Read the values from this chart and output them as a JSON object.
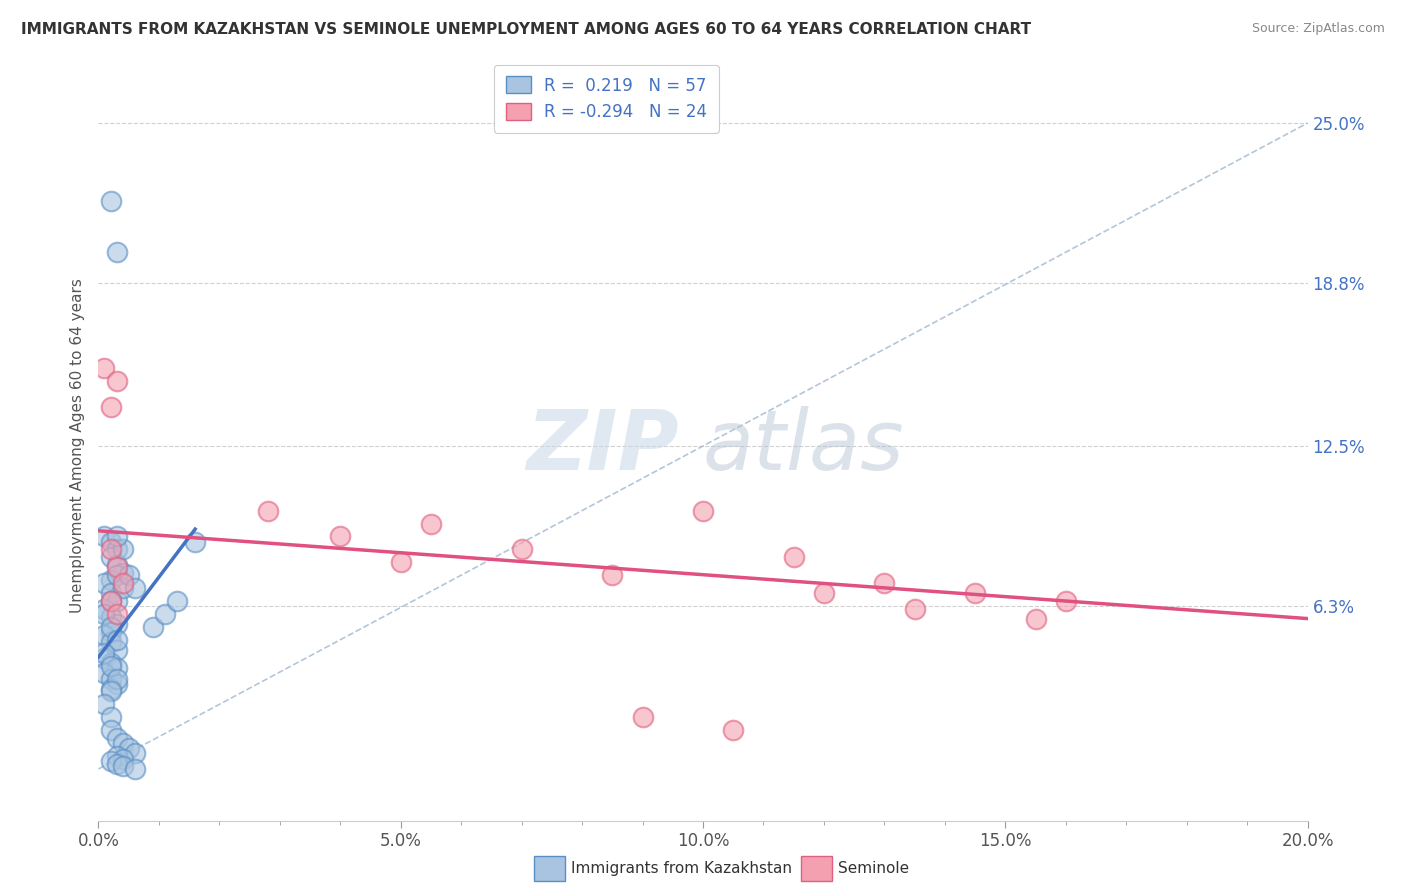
{
  "title": "IMMIGRANTS FROM KAZAKHSTAN VS SEMINOLE UNEMPLOYMENT AMONG AGES 60 TO 64 YEARS CORRELATION CHART",
  "source": "Source: ZipAtlas.com",
  "ylabel": "Unemployment Among Ages 60 to 64 years",
  "xlim": [
    0.0,
    0.2
  ],
  "ylim": [
    -0.02,
    0.27
  ],
  "xtick_labels": [
    "0.0%",
    "",
    "",
    "",
    "",
    "5.0%",
    "",
    "",
    "",
    "",
    "10.0%",
    "",
    "",
    "",
    "",
    "15.0%",
    "",
    "",
    "",
    "",
    "20.0%"
  ],
  "xtick_values": [
    0.0,
    0.01,
    0.02,
    0.03,
    0.04,
    0.05,
    0.06,
    0.07,
    0.08,
    0.09,
    0.1,
    0.11,
    0.12,
    0.13,
    0.14,
    0.15,
    0.16,
    0.17,
    0.18,
    0.19,
    0.2
  ],
  "xtick_major_labels": [
    "0.0%",
    "5.0%",
    "10.0%",
    "15.0%",
    "20.0%"
  ],
  "xtick_major_values": [
    0.0,
    0.05,
    0.1,
    0.15,
    0.2
  ],
  "ytick_labels_right": [
    "6.3%",
    "12.5%",
    "18.8%",
    "25.0%"
  ],
  "ytick_values_right": [
    0.063,
    0.125,
    0.188,
    0.25
  ],
  "legend_label1": "Immigrants from Kazakhstan",
  "legend_label2": "Seminole",
  "r1": 0.219,
  "n1": 57,
  "r2": -0.294,
  "n2": 24,
  "color_blue": "#a8c4e0",
  "color_pink": "#f4a0b0",
  "color_blue_dark": "#5a8fc4",
  "color_pink_dark": "#e06080",
  "color_blue_line": "#4472c4",
  "color_pink_line": "#e05080",
  "color_diag": "#a0b8d0",
  "watermark_zip": "ZIP",
  "watermark_atlas": "atlas",
  "blue_scatter_x": [
    0.002,
    0.003,
    0.001,
    0.002,
    0.003,
    0.002,
    0.003,
    0.004,
    0.002,
    0.001,
    0.002,
    0.003,
    0.001,
    0.002,
    0.003,
    0.002,
    0.001,
    0.002,
    0.003,
    0.001,
    0.002,
    0.003,
    0.001,
    0.002,
    0.003,
    0.002,
    0.003,
    0.004,
    0.002,
    0.001,
    0.002,
    0.003,
    0.001,
    0.002,
    0.003,
    0.002,
    0.001,
    0.002,
    0.004,
    0.003,
    0.005,
    0.006,
    0.002,
    0.003,
    0.004,
    0.005,
    0.006,
    0.003,
    0.004,
    0.002,
    0.003,
    0.004,
    0.006,
    0.009,
    0.011,
    0.013,
    0.016
  ],
  "blue_scatter_y": [
    0.22,
    0.2,
    0.09,
    0.088,
    0.085,
    0.082,
    0.079,
    0.076,
    0.073,
    0.072,
    0.068,
    0.065,
    0.062,
    0.059,
    0.056,
    0.053,
    0.052,
    0.049,
    0.046,
    0.043,
    0.041,
    0.039,
    0.037,
    0.035,
    0.033,
    0.031,
    0.075,
    0.07,
    0.065,
    0.06,
    0.055,
    0.05,
    0.045,
    0.04,
    0.035,
    0.03,
    0.025,
    0.02,
    0.085,
    0.09,
    0.075,
    0.07,
    0.015,
    0.012,
    0.01,
    0.008,
    0.006,
    0.005,
    0.004,
    0.003,
    0.002,
    0.001,
    0.0,
    0.055,
    0.06,
    0.065,
    0.088
  ],
  "pink_scatter_x": [
    0.001,
    0.002,
    0.003,
    0.002,
    0.003,
    0.004,
    0.002,
    0.003,
    0.028,
    0.04,
    0.055,
    0.07,
    0.085,
    0.1,
    0.115,
    0.13,
    0.145,
    0.16,
    0.05,
    0.12,
    0.135,
    0.155,
    0.09,
    0.105
  ],
  "pink_scatter_y": [
    0.155,
    0.14,
    0.15,
    0.085,
    0.078,
    0.072,
    0.065,
    0.06,
    0.1,
    0.09,
    0.095,
    0.085,
    0.075,
    0.1,
    0.082,
    0.072,
    0.068,
    0.065,
    0.08,
    0.068,
    0.062,
    0.058,
    0.02,
    0.015
  ]
}
